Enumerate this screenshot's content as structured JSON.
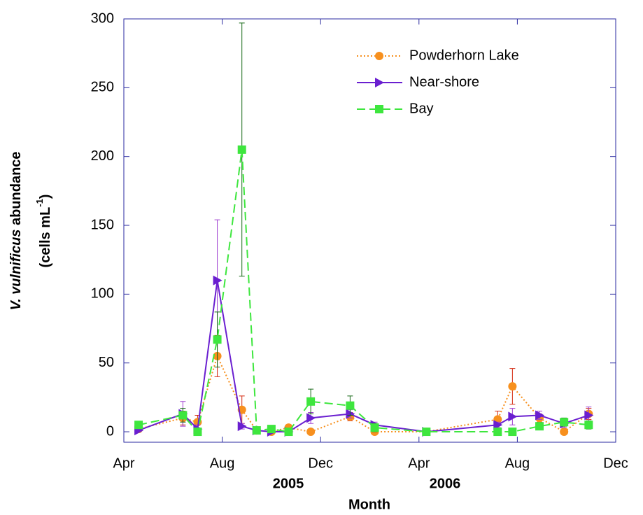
{
  "chart_data": {
    "type": "line",
    "xlabel": "Month",
    "ylabel": {
      "italic": "V. vulnificus",
      "rest": " abundance"
    },
    "ylabel2": {
      "text": "(cells mL",
      "sup": "-1",
      "end": ")"
    },
    "x": [
      4.6,
      6.4,
      7.0,
      7.8,
      8.8,
      9.4,
      10.0,
      10.7,
      11.6,
      13.2,
      14.2,
      16.3,
      19.2,
      19.8,
      20.9,
      21.9,
      22.9
    ],
    "xlim": [
      4,
      24
    ],
    "xticks": [
      {
        "value": 4,
        "label": "Apr"
      },
      {
        "value": 8,
        "label": "Aug"
      },
      {
        "value": 12,
        "label": "Dec"
      },
      {
        "value": 16,
        "label": "Apr"
      },
      {
        "value": 20,
        "label": "Aug"
      },
      {
        "value": 24,
        "label": "Dec"
      }
    ],
    "year_labels": [
      "2005",
      "2006"
    ],
    "ylim": [
      -7.6,
      300
    ],
    "yticks": [
      0,
      50,
      100,
      150,
      200,
      250,
      300
    ],
    "legend": "upper right",
    "series": [
      {
        "name": "Powderhorn Lake",
        "color": "#f7901e",
        "error_color": "#d42a10",
        "line_style": "dotted",
        "marker": "circle",
        "values": [
          2,
          10,
          7,
          55,
          16,
          1,
          0,
          3,
          0,
          11,
          0,
          0,
          9,
          33,
          10,
          0,
          13
        ],
        "errors": [
          1,
          5,
          5,
          15,
          10,
          1,
          1,
          2,
          0,
          3,
          1,
          0,
          6,
          13,
          3,
          1,
          4
        ]
      },
      {
        "name": "Near-shore",
        "color": "#6a1fd0",
        "error_color": "#a040d0",
        "line_style": "solid",
        "marker": "triangle",
        "values": [
          1,
          13,
          2,
          110,
          4,
          1,
          0,
          0,
          10,
          13,
          5,
          0,
          5,
          11,
          12,
          6,
          12
        ],
        "errors": [
          1,
          9,
          3,
          44,
          2,
          1,
          1,
          1,
          4,
          3,
          2,
          0,
          2,
          6,
          3,
          3,
          6
        ]
      },
      {
        "name": "Bay",
        "color": "#3ee63e",
        "error_color": "#186a18",
        "line_style": "dashed",
        "marker": "square",
        "values": [
          5,
          12,
          0,
          67,
          205,
          1,
          2,
          0,
          22,
          19,
          3,
          0,
          0,
          0,
          4,
          7,
          5
        ],
        "errors": [
          1,
          5,
          1,
          20,
          92,
          1,
          1,
          1,
          9,
          7,
          3,
          0,
          0,
          0,
          2,
          3,
          3
        ]
      }
    ]
  }
}
